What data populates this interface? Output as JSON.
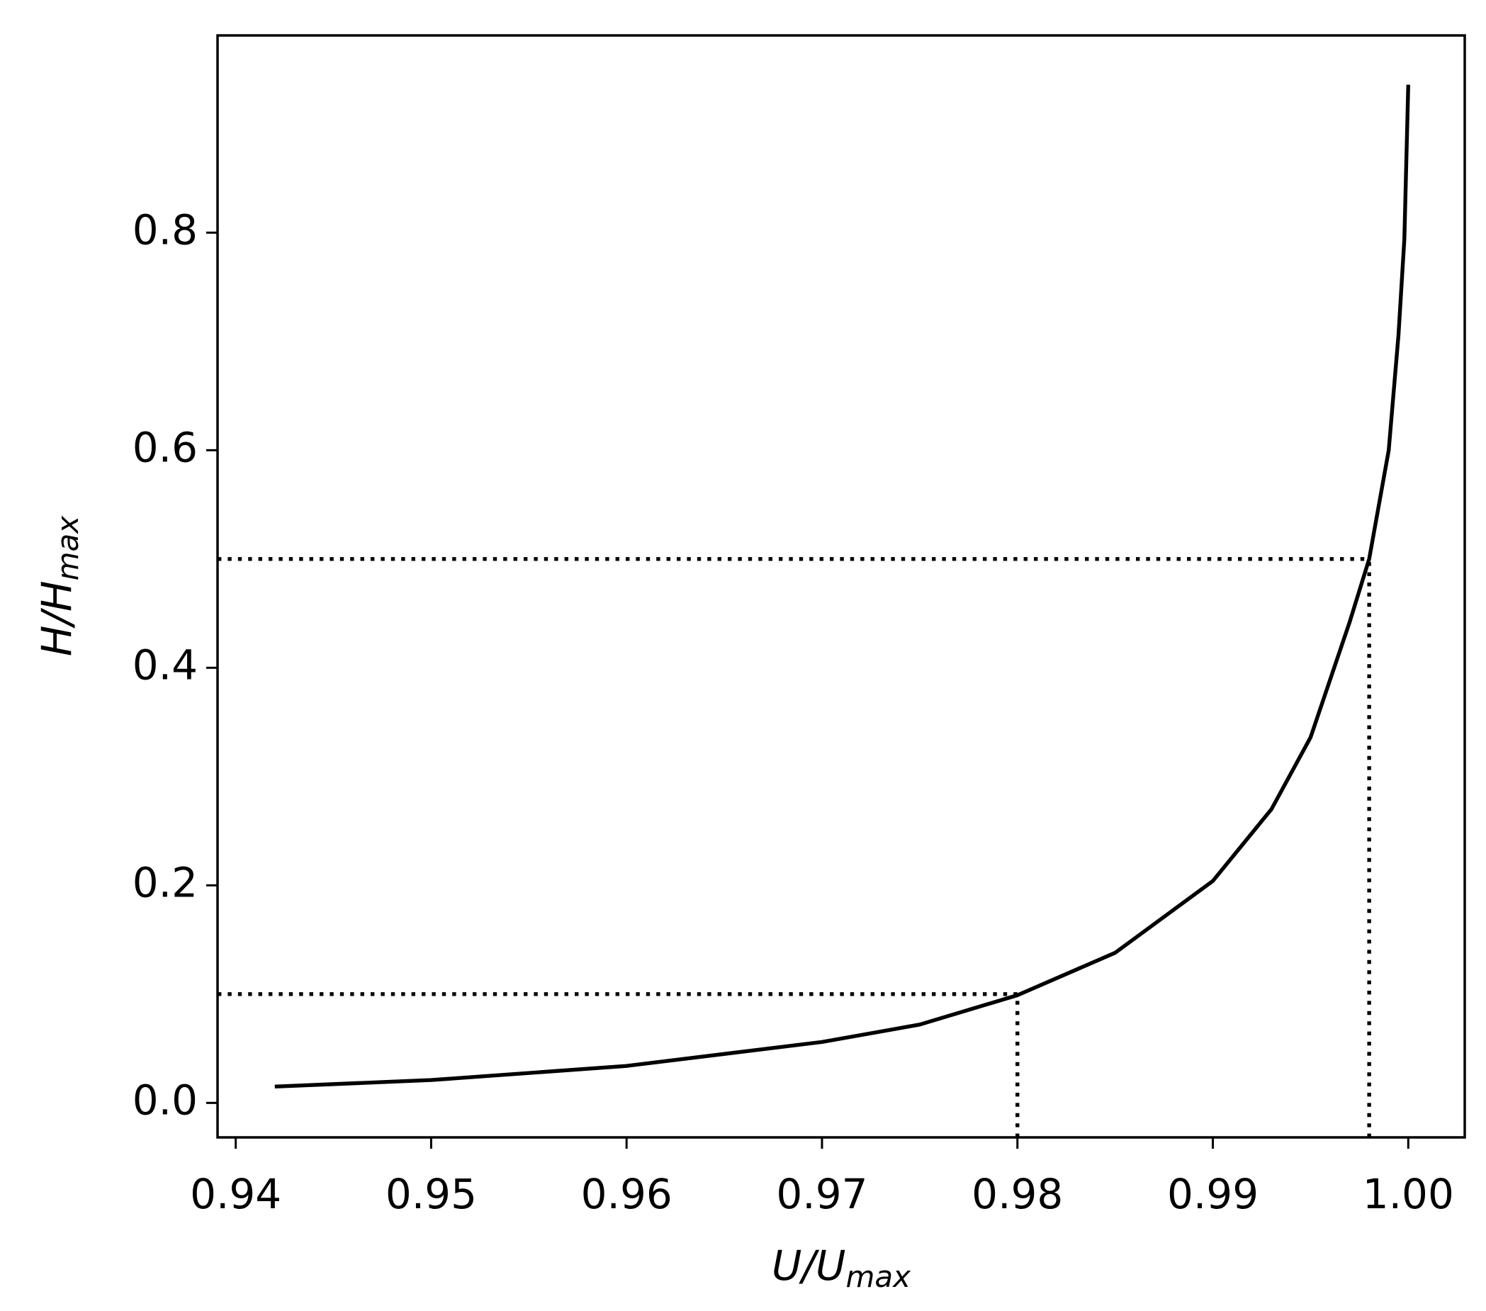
{
  "chart_data": {
    "type": "line",
    "xlabel": {
      "main": "U/U",
      "subscript": "max"
    },
    "ylabel": {
      "main": "H/H",
      "subscript": "max"
    },
    "x": [
      0.942,
      0.95,
      0.96,
      0.97,
      0.975,
      0.98,
      0.985,
      0.99,
      0.993,
      0.995,
      0.997,
      0.998,
      0.999,
      0.9995,
      0.9998,
      1.0
    ],
    "series": [
      {
        "color": "#000000",
        "values": [
          0.015,
          0.021,
          0.034,
          0.056,
          0.072,
          0.099,
          0.138,
          0.204,
          0.27,
          0.336,
          0.442,
          0.5,
          0.6,
          0.706,
          0.794,
          0.936
        ]
      }
    ],
    "reference_points": [
      {
        "x": 0.98,
        "y": 0.1
      },
      {
        "x": 0.998,
        "y": 0.5
      }
    ],
    "xlim": [
      0.93907,
      1.00289
    ],
    "ylim": [
      -0.0317,
      0.9813
    ],
    "xticks": [
      0.94,
      0.95,
      0.96,
      0.97,
      0.98,
      0.99,
      {
        "value": 1,
        "label": "1.00"
      }
    ],
    "yticks": [
      {
        "value": 0,
        "label": "0.0"
      },
      0.2,
      0.4,
      0.6,
      0.8
    ],
    "grid": false
  }
}
